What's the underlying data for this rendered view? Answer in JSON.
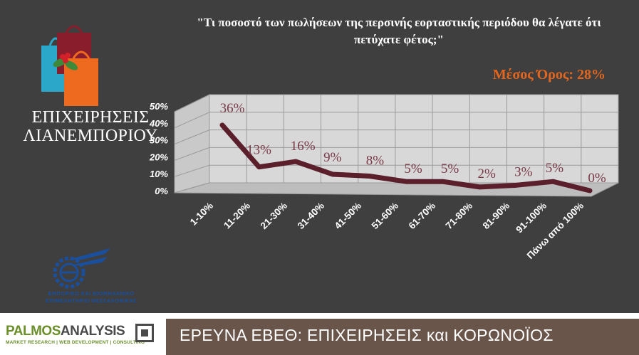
{
  "question": "\"Τι ποσοστό των πωλήσεων της περσινής εορταστικής περιόδου θα λέγατε ότι πετύχατε φέτος;\"",
  "average_label": "Μέσος Όρος: 28%",
  "segment_title_line1": "ΕΠΙΧΕΙΡΗΣΕΙΣ",
  "segment_title_line2": "ΛΙΑΝΕΜΠΟΡΙΟΥ",
  "ebeth_line1": "ΕΜΠΟΡΙΚΟ ΚΑΙ ΒΙΟΜΗΧΑΝΙΚΟ",
  "ebeth_line2": "ΕΠΙΜΕΛΗΤΗΡΙΟ ΘΕΣΣΑΛΟΝΙΚΗΣ",
  "palmos_name_a": "PALMOS",
  "palmos_name_b": "ANALYSIS",
  "palmos_sub": "MARKET RESEARCH | WEB DEVELOPMENT | CONSULTING",
  "banner": "ΕΡΕΥΝΑ ΕΒΕΘ: ΕΠΙΧΕΙΡΗΣΕΙΣ και ΚΟΡΩΝΟΪΟΣ",
  "colors": {
    "background": "#3f3f3f",
    "line": "#5a1f2b",
    "data_label": "#7a3a48",
    "average": "#e2661e",
    "banner": "#6a554b"
  },
  "chart_data": {
    "type": "line",
    "categories": [
      "1-10%",
      "11-20%",
      "21-30%",
      "31-40%",
      "41-50%",
      "51-60%",
      "61-70%",
      "71-80%",
      "81-90%",
      "91-100%",
      "Πάνω από 100%"
    ],
    "values": [
      36,
      13,
      16,
      9,
      8,
      5,
      5,
      2,
      3,
      5,
      0
    ],
    "data_labels": [
      "36%",
      "13%",
      "16%",
      "9%",
      "8%",
      "5%",
      "5%",
      "2%",
      "3%",
      "5%",
      "0%"
    ],
    "y_ticks": [
      "0%",
      "10%",
      "20%",
      "30%",
      "40%",
      "50%"
    ],
    "ylim": [
      0,
      50
    ],
    "grid": true
  }
}
